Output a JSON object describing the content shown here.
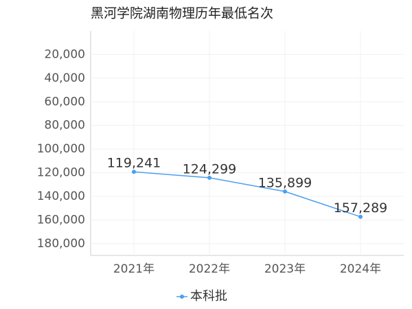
{
  "chart_data": {
    "type": "line",
    "title": "黑河学院湖南物理历年最低名次",
    "categories": [
      "2021年",
      "2022年",
      "2023年",
      "2024年"
    ],
    "series": [
      {
        "name": "本科批",
        "color": "#4a9ff0",
        "values": [
          119241,
          124299,
          135899,
          157289
        ],
        "value_labels": [
          "119,241",
          "124,299",
          "135,899",
          "157,289"
        ]
      }
    ],
    "ylim": [
      0,
      190000
    ],
    "y_reversed": true,
    "yticks": [
      {
        "value": 20000,
        "label": "20,000"
      },
      {
        "value": 40000,
        "label": "40,000"
      },
      {
        "value": 60000,
        "label": "60,000"
      },
      {
        "value": 80000,
        "label": "80,000"
      },
      {
        "value": 100000,
        "label": "100,000"
      },
      {
        "value": 120000,
        "label": "120,000"
      },
      {
        "value": 140000,
        "label": "140,000"
      },
      {
        "value": 160000,
        "label": "160,000"
      },
      {
        "value": 180000,
        "label": "180,000"
      }
    ],
    "grid": true,
    "legend": "bottom"
  }
}
